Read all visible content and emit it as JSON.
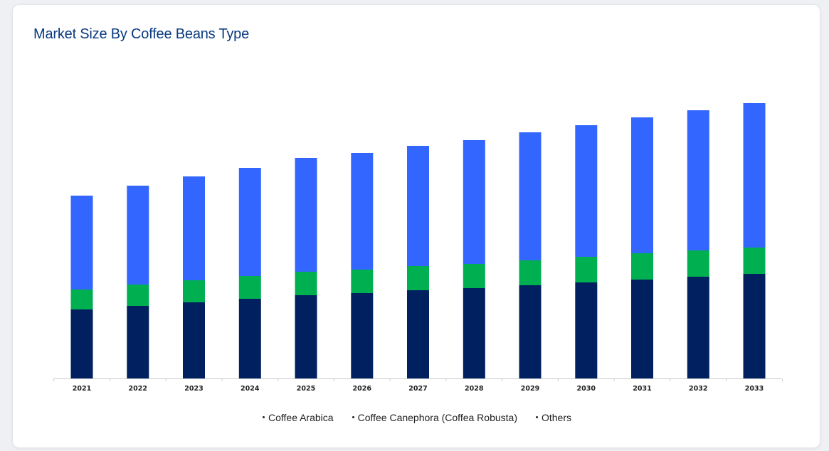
{
  "card": {
    "title": "Market Size By Coffee Beans Type"
  },
  "colors": {
    "title": "#0a3a80",
    "axis": "#cccccc"
  },
  "chart_data": {
    "type": "bar",
    "stacked": true,
    "title": "Market Size By Coffee Beans Type",
    "xlabel": "",
    "ylabel": "",
    "grid": false,
    "legend_position": "bottom",
    "categories": [
      "2021",
      "2022",
      "2023",
      "2024",
      "2025",
      "2026",
      "2027",
      "2028",
      "2029",
      "2030",
      "2031",
      "2032",
      "2033"
    ],
    "series": [
      {
        "name": "Coffee Arabica",
        "color": "#3366ff",
        "values": [
          132,
          139,
          146,
          152,
          160,
          164,
          169,
          174,
          180,
          185,
          191,
          197,
          203
        ]
      },
      {
        "name": "Coffee Canephora (Coffea Robusta)",
        "color": "#00b050",
        "values": [
          28,
          30,
          31,
          32,
          33,
          33,
          34,
          34,
          35,
          36,
          37,
          37,
          37
        ]
      },
      {
        "name": "Others",
        "color": "#002060",
        "values": [
          97,
          102,
          107,
          112,
          117,
          120,
          124,
          127,
          131,
          135,
          139,
          143,
          147
        ]
      }
    ]
  }
}
